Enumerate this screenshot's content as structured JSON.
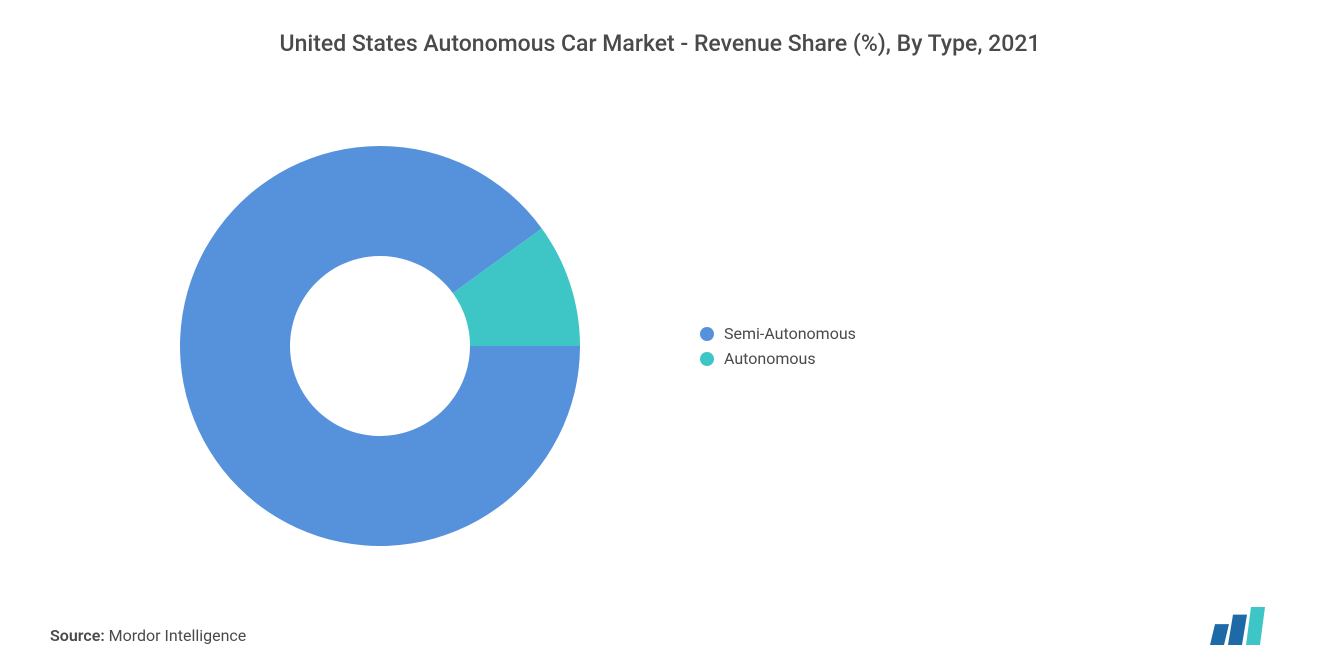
{
  "title": "United States Autonomous Car Market - Revenue Share (%), By Type, 2021",
  "chart": {
    "type": "donut",
    "inner_radius_ratio": 0.45,
    "background_color": "#ffffff",
    "start_angle_deg": 90,
    "slices": [
      {
        "label": "Semi-Autonomous",
        "value": 90,
        "color": "#5691dc"
      },
      {
        "label": "Autonomous",
        "value": 10,
        "color": "#3ec6c6"
      }
    ]
  },
  "legend": {
    "position": "right",
    "fontsize": 16,
    "text_color": "#4a4a4a",
    "items": [
      {
        "label": "Semi-Autonomous",
        "color": "#5691dc"
      },
      {
        "label": "Autonomous",
        "color": "#3ec6c6"
      }
    ]
  },
  "source": {
    "label": "Source:",
    "value": "Mordor Intelligence"
  },
  "logo": {
    "bars": [
      {
        "color": "#1e6aa8",
        "height_ratio": 0.55
      },
      {
        "color": "#1e6aa8",
        "height_ratio": 0.8
      },
      {
        "color": "#3ec6c6",
        "height_ratio": 1.0
      }
    ]
  },
  "typography": {
    "title_fontsize": 23,
    "title_color": "#4a4a4a",
    "legend_fontsize": 16,
    "source_fontsize": 16
  }
}
